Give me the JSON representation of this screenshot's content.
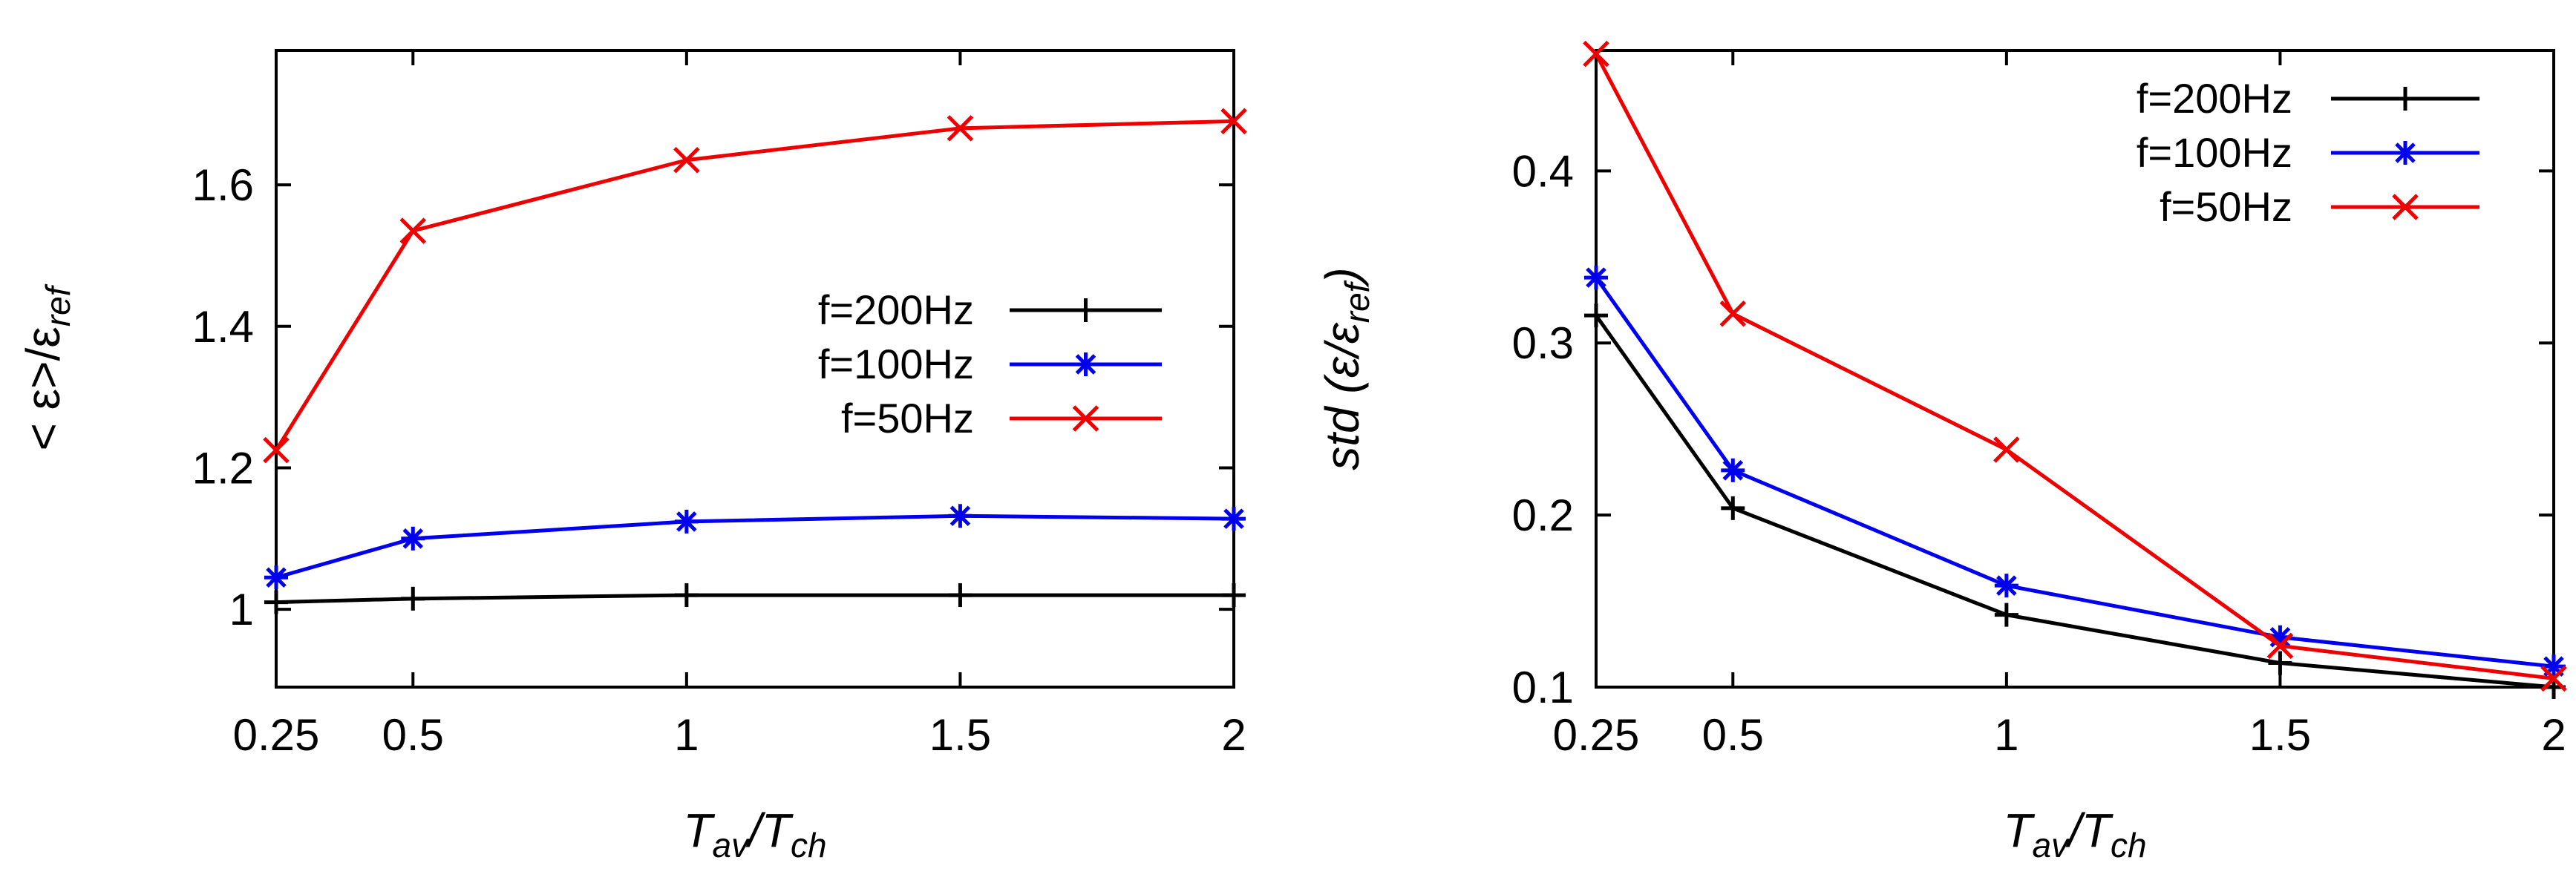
{
  "chart_data": [
    {
      "type": "line",
      "title": "",
      "xlabel": "T_av/T_ch",
      "xlabel_parts": {
        "T1": "T",
        "sub1": "av",
        "slash": "/",
        "T2": "T",
        "sub2": "ch"
      },
      "ylabel": "<ε>/ε_ref",
      "ylabel_parts": {
        "main": "< ε>/ε",
        "sub": "ref"
      },
      "x": [
        0.25,
        0.5,
        1,
        1.5,
        2
      ],
      "xticks": [
        0.25,
        0.5,
        1,
        1.5,
        2
      ],
      "xtick_labels": [
        "0.25",
        "0.5",
        "1",
        "1.5",
        "2"
      ],
      "xlim": [
        0.25,
        2
      ],
      "yticks": [
        1,
        1.2,
        1.4,
        1.6
      ],
      "ytick_labels": [
        "1",
        "1.2",
        "1.4",
        "1.6"
      ],
      "ylim": [
        0.89,
        1.79
      ],
      "legend_position": "center-right",
      "series": [
        {
          "name": "f=200Hz",
          "marker": "plus",
          "color": "#000000",
          "values": [
            1.01,
            1.015,
            1.02,
            1.02,
            1.02
          ]
        },
        {
          "name": "f=100Hz",
          "marker": "star",
          "color": "#0000ee",
          "values": [
            1.045,
            1.1,
            1.124,
            1.132,
            1.128
          ]
        },
        {
          "name": "f=50Hz",
          "marker": "cross",
          "color": "#ee0000",
          "values": [
            1.225,
            1.535,
            1.635,
            1.68,
            1.69
          ]
        }
      ]
    },
    {
      "type": "line",
      "title": "",
      "xlabel": "T_av/T_ch",
      "xlabel_parts": {
        "T1": "T",
        "sub1": "av",
        "slash": "/",
        "T2": "T",
        "sub2": "ch"
      },
      "ylabel": "std (ε/ε_ref)",
      "ylabel_parts": {
        "main": "std (ε/ε",
        "sub": "ref",
        "close": ")"
      },
      "x": [
        0.25,
        0.5,
        1,
        1.5,
        2
      ],
      "xticks": [
        0.25,
        0.5,
        1,
        1.5,
        2
      ],
      "xtick_labels": [
        "0.25",
        "0.5",
        "1",
        "1.5",
        "2"
      ],
      "xlim": [
        0.25,
        2
      ],
      "yticks": [
        0.1,
        0.2,
        0.3,
        0.4
      ],
      "ytick_labels": [
        "0.1",
        "0.2",
        "0.3",
        "0.4"
      ],
      "ylim": [
        0.1,
        0.47
      ],
      "legend_position": "top-right",
      "series": [
        {
          "name": "f=200Hz",
          "marker": "plus",
          "color": "#000000",
          "values": [
            0.316,
            0.204,
            0.142,
            0.114,
            0.1
          ]
        },
        {
          "name": "f=100Hz",
          "marker": "star",
          "color": "#0000ee",
          "values": [
            0.338,
            0.226,
            0.159,
            0.129,
            0.112
          ]
        },
        {
          "name": "f=50Hz",
          "marker": "cross",
          "color": "#ee0000",
          "values": [
            0.468,
            0.317,
            0.238,
            0.124,
            0.105
          ]
        }
      ]
    }
  ]
}
